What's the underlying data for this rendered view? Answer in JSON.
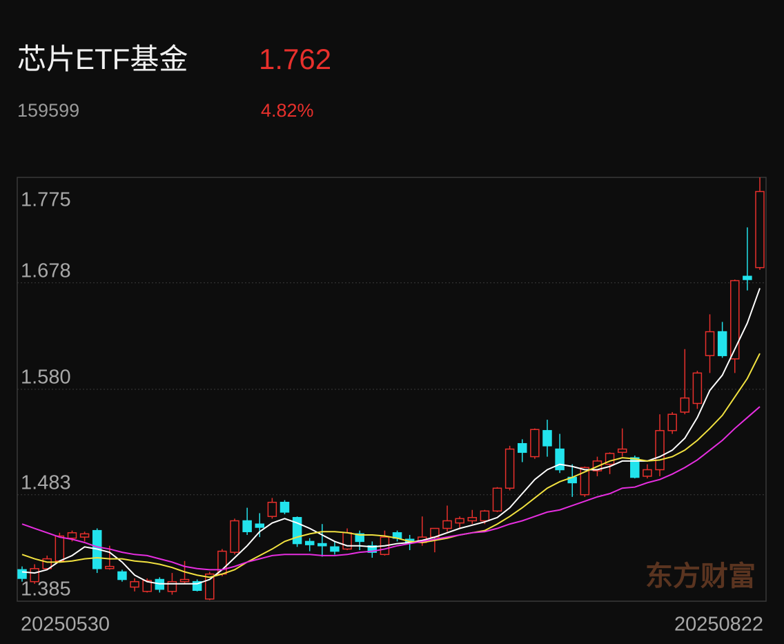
{
  "chart_data": {
    "type": "candlestick",
    "title": "芯片ETF基金",
    "price": "1.762",
    "code": "159599",
    "change": "4.82%",
    "watermark": "东方财富",
    "up_color": "#e8302c",
    "down_color": "#22e3ec",
    "categories": [
      "20250530",
      null,
      null,
      null,
      null,
      null,
      null,
      null,
      null,
      null,
      null,
      null,
      null,
      null,
      null,
      null,
      null,
      null,
      null,
      null,
      null,
      null,
      null,
      null,
      null,
      null,
      null,
      null,
      null,
      null,
      null,
      null,
      null,
      null,
      null,
      null,
      null,
      null,
      null,
      null,
      null,
      null,
      null,
      null,
      null,
      null,
      null,
      null,
      null,
      null,
      null,
      null,
      null,
      null,
      null,
      null,
      null,
      null,
      null,
      "20250822"
    ],
    "open": [
      1.414,
      1.403,
      1.415,
      1.422,
      1.443,
      1.444,
      1.45,
      1.415,
      1.412,
      1.398,
      1.394,
      1.405,
      1.394,
      1.403,
      1.403,
      1.387,
      1.41,
      1.43,
      1.459,
      1.456,
      1.463,
      1.476,
      1.462,
      1.44,
      1.438,
      1.435,
      1.433,
      1.447,
      1.436,
      1.428,
      1.448,
      1.442,
      1.439,
      1.444,
      1.452,
      1.457,
      1.459,
      1.459,
      1.468,
      1.489,
      1.53,
      1.518,
      1.542,
      1.525,
      1.499,
      1.483,
      1.505,
      1.511,
      1.522,
      1.517,
      1.5,
      1.506,
      1.542,
      1.559,
      1.567,
      1.611,
      1.633,
      1.608,
      1.684,
      1.692
    ],
    "high": [
      1.417,
      1.419,
      1.427,
      1.448,
      1.45,
      1.449,
      1.452,
      1.436,
      1.414,
      1.406,
      1.406,
      1.407,
      1.411,
      1.422,
      1.405,
      1.412,
      1.433,
      1.461,
      1.471,
      1.466,
      1.48,
      1.478,
      1.463,
      1.443,
      1.456,
      1.44,
      1.452,
      1.45,
      1.44,
      1.45,
      1.45,
      1.446,
      1.463,
      1.452,
      1.473,
      1.463,
      1.469,
      1.469,
      1.49,
      1.528,
      1.534,
      1.544,
      1.552,
      1.539,
      1.511,
      1.509,
      1.518,
      1.522,
      1.544,
      1.519,
      1.511,
      1.557,
      1.559,
      1.617,
      1.597,
      1.649,
      1.642,
      1.681,
      1.729,
      1.775
    ],
    "low": [
      1.403,
      1.401,
      1.414,
      1.421,
      1.44,
      1.44,
      1.411,
      1.414,
      1.403,
      1.394,
      1.393,
      1.393,
      1.391,
      1.401,
      1.394,
      1.386,
      1.408,
      1.428,
      1.446,
      1.444,
      1.461,
      1.465,
      1.435,
      1.431,
      1.426,
      1.428,
      1.432,
      1.432,
      1.425,
      1.427,
      1.44,
      1.432,
      1.436,
      1.43,
      1.449,
      1.452,
      1.456,
      1.456,
      1.467,
      1.487,
      1.513,
      1.516,
      1.518,
      1.503,
      1.481,
      1.481,
      1.5,
      1.502,
      1.518,
      1.498,
      1.498,
      1.5,
      1.539,
      1.557,
      1.562,
      1.595,
      1.609,
      1.595,
      1.671,
      1.69
    ],
    "close": [
      1.406,
      1.415,
      1.424,
      1.445,
      1.448,
      1.447,
      1.415,
      1.417,
      1.405,
      1.403,
      1.404,
      1.396,
      1.403,
      1.405,
      1.395,
      1.41,
      1.431,
      1.459,
      1.449,
      1.453,
      1.476,
      1.467,
      1.438,
      1.437,
      1.436,
      1.431,
      1.448,
      1.44,
      1.43,
      1.444,
      1.443,
      1.439,
      1.444,
      1.452,
      1.459,
      1.461,
      1.462,
      1.468,
      1.489,
      1.525,
      1.522,
      1.543,
      1.528,
      1.506,
      1.494,
      1.508,
      1.514,
      1.521,
      1.525,
      1.499,
      1.506,
      1.542,
      1.557,
      1.572,
      1.595,
      1.633,
      1.611,
      1.68,
      1.681,
      1.762
    ],
    "series": [
      {
        "color": "#ffffff",
        "values": [
          1.412,
          1.411,
          1.414,
          1.422,
          1.427,
          1.435,
          1.433,
          1.43,
          1.421,
          1.409,
          1.403,
          1.401,
          1.401,
          1.401,
          1.401,
          1.405,
          1.414,
          1.425,
          1.436,
          1.449,
          1.457,
          1.461,
          1.457,
          1.452,
          1.446,
          1.44,
          1.436,
          1.436,
          1.435,
          1.436,
          1.438,
          1.439,
          1.441,
          1.444,
          1.448,
          1.452,
          1.455,
          1.458,
          1.462,
          1.471,
          1.484,
          1.497,
          1.506,
          1.511,
          1.509,
          1.506,
          1.506,
          1.509,
          1.514,
          1.514,
          1.514,
          1.518,
          1.524,
          1.535,
          1.554,
          1.579,
          1.593,
          1.617,
          1.641,
          1.673
        ]
      },
      {
        "color": "#f2e240",
        "values": [
          1.428,
          1.424,
          1.421,
          1.421,
          1.422,
          1.424,
          1.425,
          1.424,
          1.424,
          1.422,
          1.421,
          1.419,
          1.416,
          1.412,
          1.409,
          1.407,
          1.41,
          1.414,
          1.421,
          1.427,
          1.433,
          1.44,
          1.444,
          1.447,
          1.449,
          1.449,
          1.448,
          1.446,
          1.446,
          1.445,
          1.443,
          1.44,
          1.439,
          1.441,
          1.443,
          1.446,
          1.448,
          1.45,
          1.456,
          1.463,
          1.471,
          1.48,
          1.489,
          1.495,
          1.499,
          1.504,
          1.509,
          1.514,
          1.517,
          1.516,
          1.514,
          1.515,
          1.518,
          1.524,
          1.533,
          1.544,
          1.556,
          1.573,
          1.59,
          1.613
        ]
      },
      {
        "color": "#e62ee0",
        "values": [
          1.456,
          1.452,
          1.448,
          1.444,
          1.442,
          1.439,
          1.435,
          1.433,
          1.43,
          1.428,
          1.427,
          1.424,
          1.421,
          1.417,
          1.415,
          1.414,
          1.414,
          1.417,
          1.421,
          1.424,
          1.427,
          1.428,
          1.428,
          1.428,
          1.427,
          1.427,
          1.428,
          1.43,
          1.431,
          1.433,
          1.436,
          1.438,
          1.44,
          1.442,
          1.444,
          1.446,
          1.448,
          1.449,
          1.452,
          1.456,
          1.459,
          1.463,
          1.467,
          1.469,
          1.473,
          1.477,
          1.481,
          1.484,
          1.489,
          1.49,
          1.494,
          1.497,
          1.502,
          1.508,
          1.515,
          1.524,
          1.533,
          1.544,
          1.554,
          1.564
        ]
      }
    ],
    "ylim": [
      1.385,
      1.775
    ],
    "yticks": [
      1.775,
      1.678,
      {
        "value": 1.58,
        "label": "1.580"
      },
      1.483,
      1.385
    ],
    "grid": true
  }
}
